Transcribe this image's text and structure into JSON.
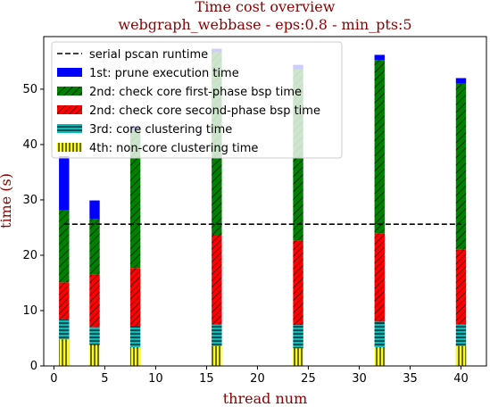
{
  "chart_data": {
    "type": "bar",
    "title": "Time cost overview",
    "subtitle": "webgraph_webbase - eps:0.8 - min_pts:5",
    "xlabel": "thread num",
    "ylabel": "time (s)",
    "xlim": [
      -1,
      42.5
    ],
    "ylim": [
      0,
      59.5
    ],
    "xticks": [
      0,
      5,
      10,
      15,
      20,
      25,
      30,
      35,
      40
    ],
    "yticks": [
      0,
      10,
      20,
      30,
      40,
      50
    ],
    "grid": false,
    "legend_position": "top-left",
    "x": [
      1,
      4,
      8,
      16,
      24,
      32,
      40
    ],
    "reference_line": {
      "name": "serial pscan runtime",
      "value": 25.6,
      "style": "dashed",
      "color": "#000000"
    },
    "series": [
      {
        "name": "4th: non-core clustering time",
        "color": "#ffff00",
        "hatch": "vertical",
        "values": [
          4.8,
          3.8,
          3.4,
          3.6,
          3.2,
          3.4,
          3.6
        ]
      },
      {
        "name": "3rd: core clustering time",
        "color": "#00bfbf",
        "hatch": "horizontal",
        "values": [
          3.6,
          3.2,
          3.8,
          3.9,
          4.2,
          4.6,
          3.9
        ]
      },
      {
        "name": "2nd: check core second-phase bsp time",
        "color": "#ff0000",
        "hatch": "diagonal",
        "values": [
          6.7,
          9.5,
          10.5,
          16.2,
          15.3,
          16.0,
          13.5
        ]
      },
      {
        "name": "2nd: check core first-phase bsp time",
        "color": "#008000",
        "hatch": "diagonal",
        "values": [
          13.0,
          10.1,
          25.1,
          33.0,
          30.9,
          31.3,
          30.0
        ]
      },
      {
        "name": "1st: prune execution time",
        "color": "#0000ff",
        "hatch": "none",
        "values": [
          9.8,
          3.3,
          0.5,
          0.6,
          0.8,
          0.9,
          1.0
        ]
      }
    ],
    "legend_order": [
      "serial pscan runtime",
      "1st: prune execution time",
      "2nd: check core first-phase bsp time",
      "2nd: check core second-phase bsp time",
      "3rd: core clustering time",
      "4th: non-core clustering time"
    ]
  }
}
